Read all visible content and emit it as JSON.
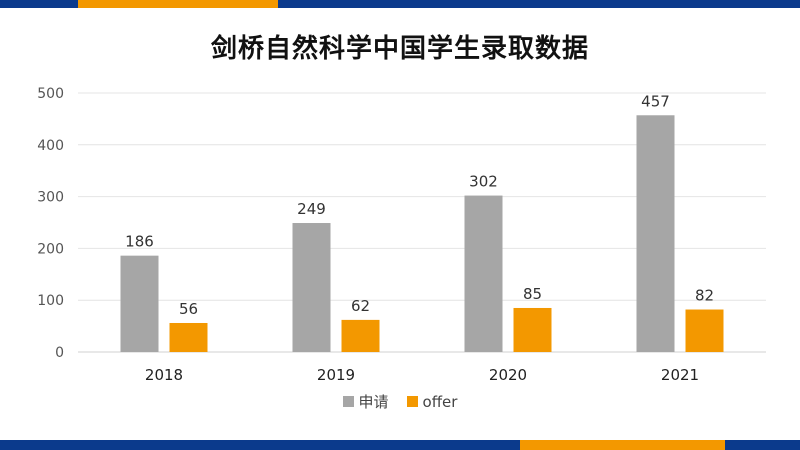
{
  "chart_data": {
    "type": "bar",
    "title": "剑桥自然科学中国学生录取数据",
    "categories": [
      "2018",
      "2019",
      "2020",
      "2021"
    ],
    "series": [
      {
        "name": "申请",
        "values": [
          186,
          249,
          302,
          457
        ],
        "color": "#a6a6a6"
      },
      {
        "name": "offer",
        "values": [
          56,
          62,
          85,
          82
        ],
        "color": "#f39800"
      }
    ],
    "ylim": [
      0,
      500
    ],
    "yticks": [
      0,
      100,
      200,
      300,
      400,
      500
    ],
    "grid": true,
    "legend_position": "bottom"
  },
  "colors": {
    "brand_blue": "#0b3a8c",
    "brand_orange": "#f39800"
  }
}
